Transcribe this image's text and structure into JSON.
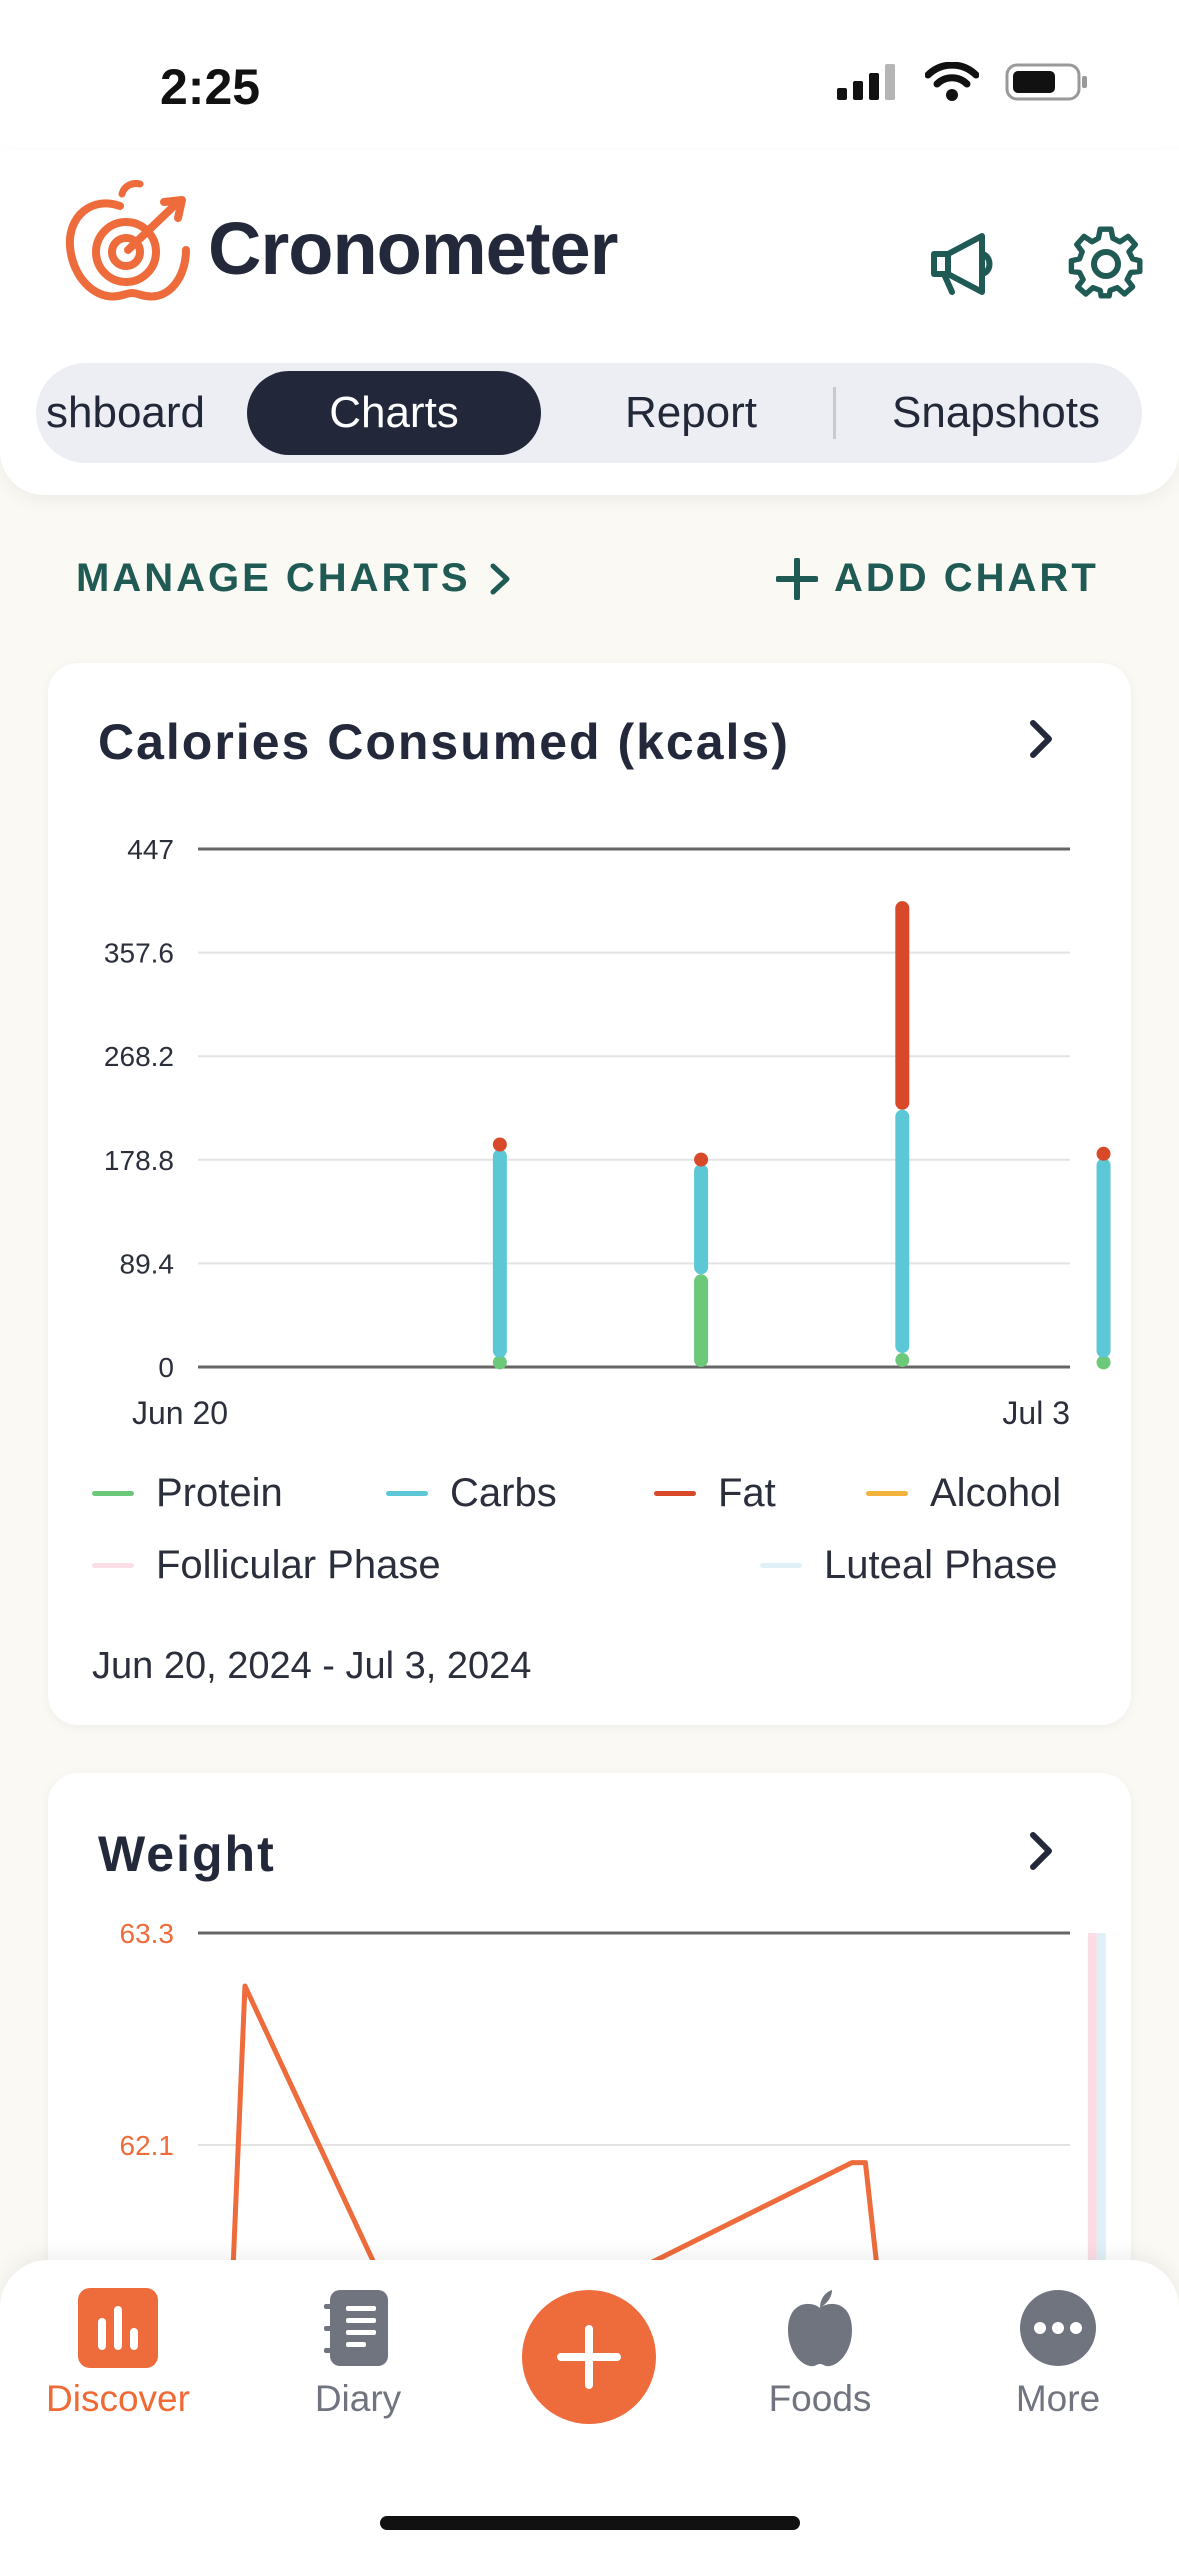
{
  "status_bar": {
    "time": "2:25"
  },
  "header": {
    "app_name": "Cronometer",
    "icons": {
      "logo": "apple-target-logo",
      "announcements": "megaphone-icon",
      "settings": "gear-icon"
    }
  },
  "tabs": [
    {
      "label": "shboard",
      "active": false
    },
    {
      "label": "Charts",
      "active": true
    },
    {
      "label": "Report",
      "active": false
    },
    {
      "label": "Snapshots",
      "active": false
    }
  ],
  "actions": {
    "manage_label": "MANAGE CHARTS",
    "add_label": "ADD CHART"
  },
  "colors": {
    "protein": "#6cc97a",
    "carbs": "#5cc8d5",
    "fat": "#d8492a",
    "alcohol": "#f2b33d",
    "follicular": "#fbdde6",
    "luteal": "#dff1f6",
    "accent": "#ee6b3b",
    "dark": "#22283a"
  },
  "calories_card": {
    "title": "Calories Consumed (kcals)",
    "legend": [
      "Protein",
      "Carbs",
      "Fat",
      "Alcohol",
      "Follicular Phase",
      "Luteal Phase"
    ],
    "date_range": "Jun 20, 2024 - Jul 3, 2024"
  },
  "weight_card": {
    "title": "Weight"
  },
  "nav": {
    "discover": "Discover",
    "diary": "Diary",
    "foods": "Foods",
    "more": "More",
    "icons": {
      "discover": "bar-chart-icon",
      "diary": "notebook-icon",
      "add": "plus-icon",
      "foods": "apple-icon",
      "more": "ellipsis-icon"
    }
  },
  "chart_data": [
    {
      "type": "bar",
      "title": "Calories Consumed (kcals)",
      "ylim": [
        0,
        447
      ],
      "y_ticks": [
        "447",
        "357.6",
        "268.2",
        "178.8",
        "89.4",
        "0"
      ],
      "x_ticks": [
        "Jun 20",
        "Jul 3"
      ],
      "x_domain": [
        0,
        13
      ],
      "stacked": true,
      "bars": [
        {
          "x": 4.5,
          "protein": 8,
          "carbs": 180,
          "fat": 8,
          "alcohol": 0
        },
        {
          "x": 7.5,
          "protein": 80,
          "carbs": 95,
          "fat": 8,
          "alcohol": 0
        },
        {
          "x": 10.5,
          "protein": 12,
          "carbs": 210,
          "fat": 180,
          "alcohol": 0
        },
        {
          "x": 13.5,
          "protein": 8,
          "carbs": 172,
          "fat": 8,
          "alcohol": 0
        }
      ],
      "legend": [
        "Protein",
        "Carbs",
        "Fat",
        "Alcohol",
        "Follicular Phase",
        "Luteal Phase"
      ],
      "grid": true
    },
    {
      "type": "line",
      "title": "Weight",
      "y_ticks": [
        "63.3",
        "62.1"
      ],
      "ylim": [
        60.8,
        63.3
      ],
      "x_domain": [
        0,
        13
      ],
      "points": [
        {
          "x": 0.4,
          "y": 60.3
        },
        {
          "x": 0.7,
          "y": 63.0
        },
        {
          "x": 3.4,
          "y": 60.8
        },
        {
          "x": 9.75,
          "y": 62.0
        },
        {
          "x": 9.95,
          "y": 62.0
        },
        {
          "x": 10.3,
          "y": 60.8
        }
      ],
      "phase_band_x": 13.4,
      "grid": true
    }
  ]
}
